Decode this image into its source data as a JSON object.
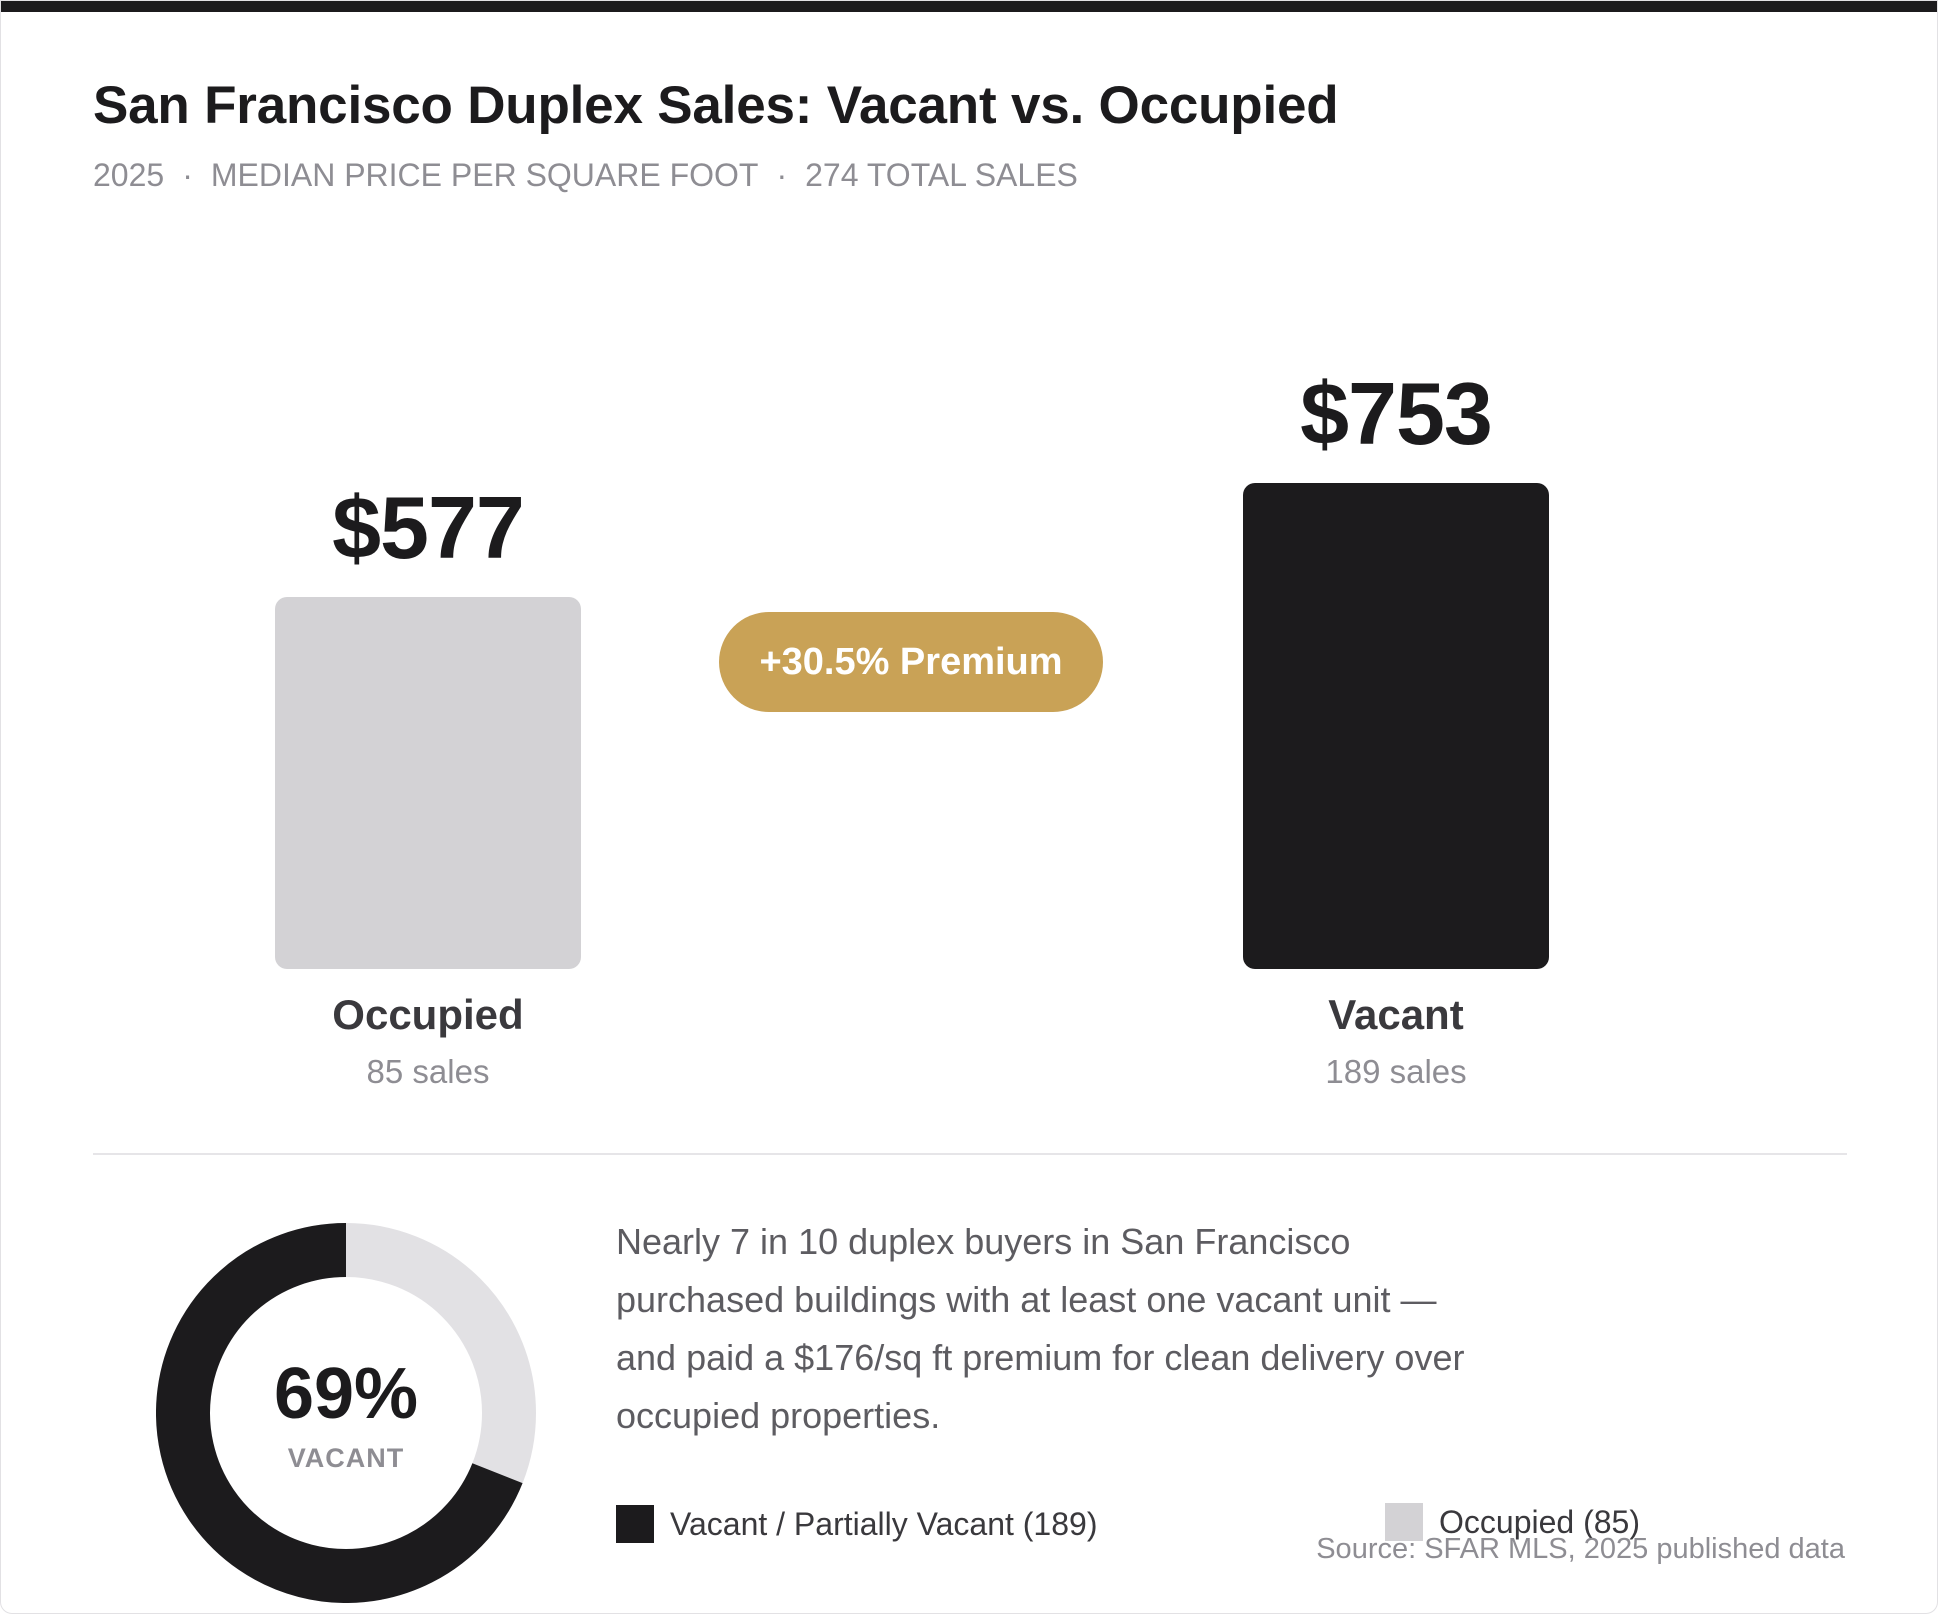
{
  "header": {
    "title": "San Francisco Duplex Sales: Vacant vs. Occupied",
    "subtitle_parts": [
      "2025",
      "Median Price Per Square Foot",
      "274 Total Sales"
    ]
  },
  "chart_data": [
    {
      "type": "bar",
      "title": "San Francisco Duplex Sales: Vacant vs. Occupied",
      "categories": [
        "Occupied",
        "Vacant"
      ],
      "values": [
        577,
        753
      ],
      "value_labels": [
        "$577",
        "$753"
      ],
      "sub_labels": [
        "85 sales",
        "189 sales"
      ],
      "colors": [
        "#d3d2d5",
        "#1c1b1d"
      ],
      "annotation": "+30.5% Premium",
      "grid": false
    },
    {
      "type": "pie",
      "variant": "donut",
      "labels": [
        "Vacant / Partially Vacant (189)",
        "Occupied (85)"
      ],
      "values": [
        189,
        85
      ],
      "colors": [
        "#1c1b1d",
        "#e2e1e4"
      ],
      "center_value": "69%",
      "center_label": "VACANT"
    }
  ],
  "narrative": "Nearly 7 in 10 duplex buyers in San Francisco purchased buildings with at least one vacant unit — and paid a $176/sq ft premium for clean delivery over occupied properties.",
  "source": "Source: SFAR MLS, 2025 published data",
  "colors": {
    "accent": "#c9a256",
    "dark": "#1c1b1d",
    "light": "#d3d2d5"
  }
}
